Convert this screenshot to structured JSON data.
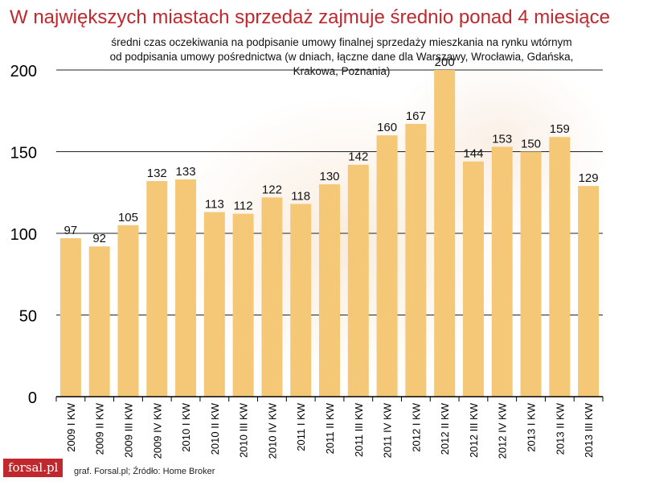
{
  "title": "W największych miastach sprzedaż zajmuje średnio ponad 4 miesiące",
  "subtitle_lines": [
    "średni czas oczekiwania na podpisanie umowy finalnej sprzedaży mieszkania na rynku wtórnym",
    "od podpisania umowy pośrednictwa (w dniach, łączne dane dla Warszawy, Wrocławia, Gdańska,",
    "Krakowa, Poznania)"
  ],
  "footer": {
    "logo": "forsal.pl",
    "source": "graf. Forsal.pl; Źródło: Home Broker"
  },
  "colors": {
    "bar": "#f5c878",
    "title": "#c0282d",
    "grid": "#222222"
  },
  "chart_data": {
    "type": "bar",
    "categories": [
      "2009 I KW",
      "2009 II KW",
      "2009 III KW",
      "2009 IV KW",
      "2010 I KW",
      "2010 II KW",
      "2010 III KW",
      "2010 IV KW",
      "2011 I KW",
      "2011 II KW",
      "2011 III KW",
      "2011 IV KW",
      "2012 I KW",
      "2012 II KW",
      "2012 III KW",
      "2012 IV KW",
      "2013 I KW",
      "2013 II KW",
      "2013 III KW"
    ],
    "values": [
      97,
      92,
      105,
      132,
      133,
      113,
      112,
      122,
      118,
      130,
      142,
      160,
      167,
      200,
      144,
      153,
      150,
      159,
      129
    ],
    "ylim": [
      0,
      200
    ],
    "yticks": [
      0,
      50,
      100,
      150,
      200
    ],
    "grid": true,
    "data_labels": true
  }
}
